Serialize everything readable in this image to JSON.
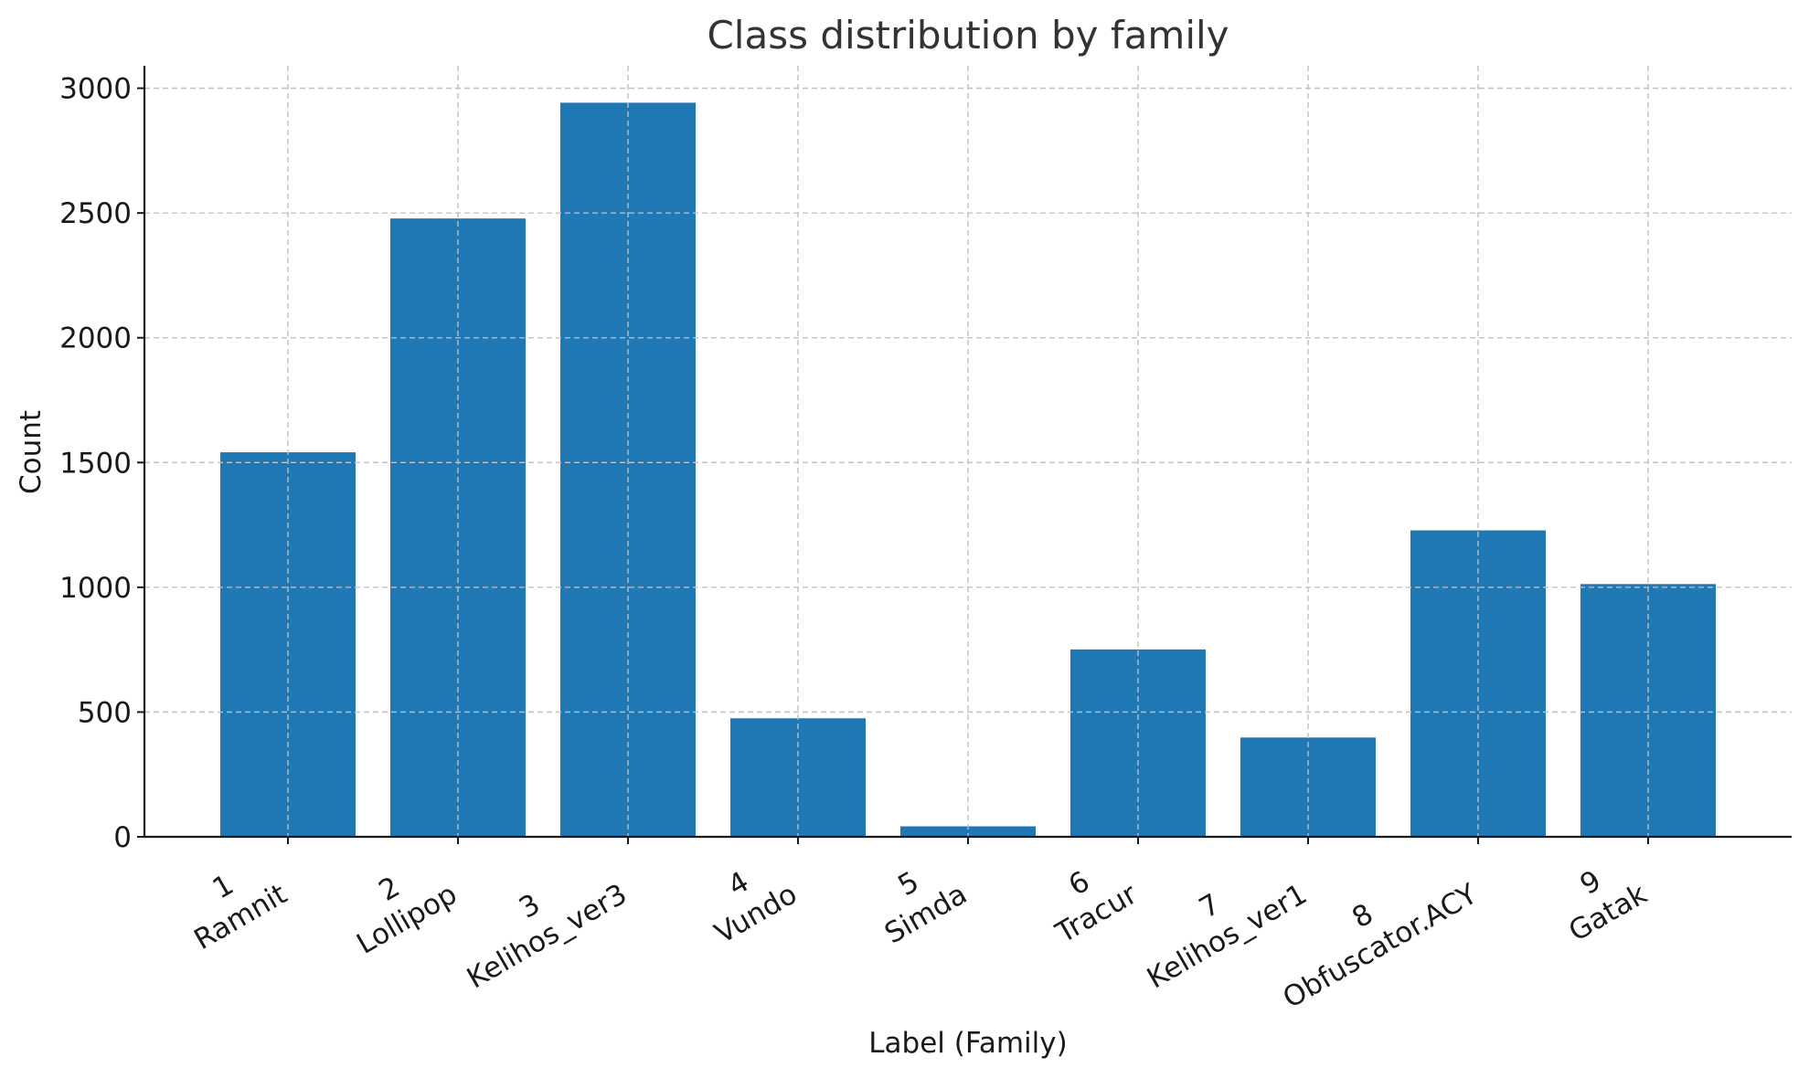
{
  "chart_data": {
    "type": "bar",
    "title": "Class distribution by family",
    "xlabel": "Label (Family)",
    "ylabel": "Count",
    "categories": [
      {
        "number": "1",
        "family": "Ramnit"
      },
      {
        "number": "2",
        "family": "Lollipop"
      },
      {
        "number": "3",
        "family": "Kelihos_ver3"
      },
      {
        "number": "4",
        "family": "Vundo"
      },
      {
        "number": "5",
        "family": "Simda"
      },
      {
        "number": "6",
        "family": "Tracur"
      },
      {
        "number": "7",
        "family": "Kelihos_ver1"
      },
      {
        "number": "8",
        "family": "Obfuscator.ACY"
      },
      {
        "number": "9",
        "family": "Gatak"
      }
    ],
    "values": [
      1541,
      2478,
      2942,
      475,
      42,
      751,
      398,
      1228,
      1013
    ],
    "ylim": [
      0,
      3090
    ],
    "yticks": [
      0,
      500,
      1000,
      1500,
      2000,
      2500,
      3000
    ],
    "grid": true,
    "bar_color": "#1f77b4"
  }
}
